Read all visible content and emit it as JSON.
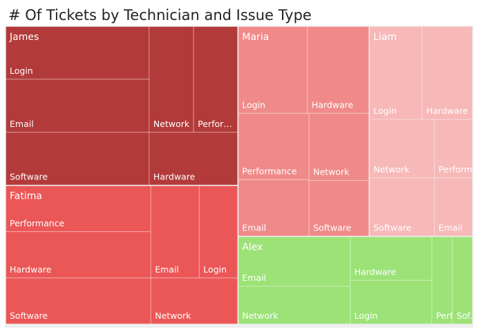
{
  "title": "# Of Tickets by Technician and Issue Type",
  "chart_data": {
    "type": "treemap",
    "title": "# Of Tickets by Technician and Issue Type",
    "groups": [
      {
        "name": "James",
        "color": "#b33a3a",
        "leaves": [
          {
            "label": "Login",
            "value": 34
          },
          {
            "label": "Email",
            "value": 34
          },
          {
            "label": "Software",
            "value": 34
          },
          {
            "label": "Network",
            "value": 21
          },
          {
            "label": "Perfor…",
            "value": 21
          },
          {
            "label": "Hardware",
            "value": 21
          }
        ]
      },
      {
        "name": "Fatima",
        "color": "#eb5757",
        "leaves": [
          {
            "label": "Performance",
            "value": 30
          },
          {
            "label": "Hardware",
            "value": 30
          },
          {
            "label": "Software",
            "value": 30
          },
          {
            "label": "Email",
            "value": 20
          },
          {
            "label": "Login",
            "value": 16
          },
          {
            "label": "Network",
            "value": 18
          }
        ]
      },
      {
        "name": "Maria",
        "color": "#f08a8a",
        "leaves": [
          {
            "label": "Login",
            "value": 27
          },
          {
            "label": "Hardware",
            "value": 24
          },
          {
            "label": "Performance",
            "value": 21
          },
          {
            "label": "Network",
            "value": 18
          },
          {
            "label": "Email",
            "value": 18
          },
          {
            "label": "Software",
            "value": 15
          }
        ]
      },
      {
        "name": "Liam",
        "color": "#f7b8b8",
        "leaves": [
          {
            "label": "Login",
            "value": 22
          },
          {
            "label": "Hardware",
            "value": 21
          },
          {
            "label": "Network",
            "value": 17
          },
          {
            "label": "Perform…",
            "value": 10
          },
          {
            "label": "Software",
            "value": 17
          },
          {
            "label": "Email",
            "value": 10
          }
        ]
      },
      {
        "name": "Alex",
        "color": "#9ce277",
        "leaves": [
          {
            "label": "Email",
            "value": 25
          },
          {
            "label": "Network",
            "value": 19
          },
          {
            "label": "Hardware",
            "value": 16
          },
          {
            "label": "Login",
            "value": 16
          },
          {
            "label": "Perf…",
            "value": 8
          },
          {
            "label": "Sof…",
            "value": 8
          }
        ]
      }
    ]
  }
}
